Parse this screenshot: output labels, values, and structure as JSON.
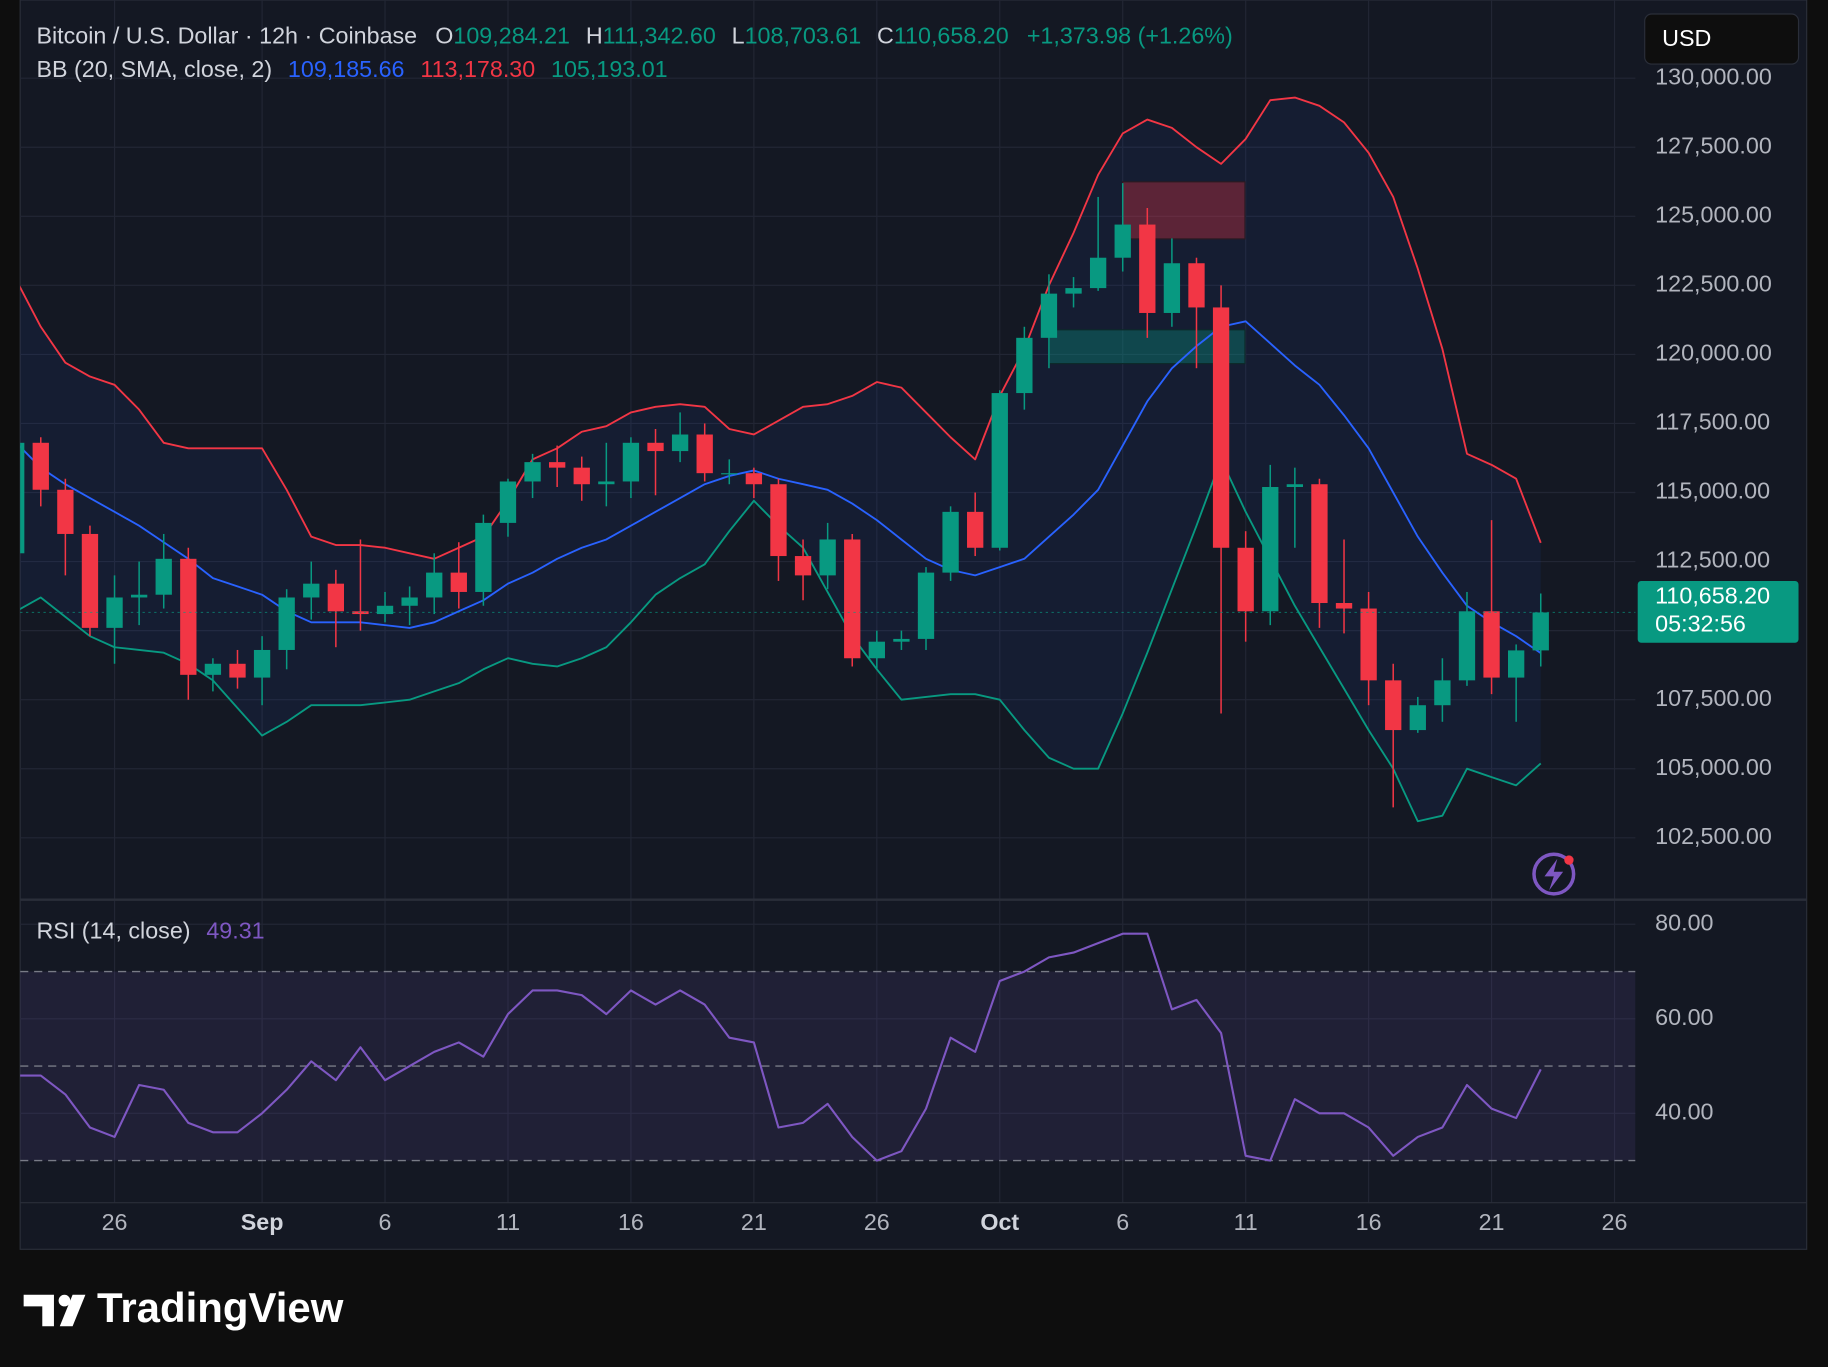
{
  "chart_data": {
    "type": "candlestick",
    "title": "Bitcoin / U.S. Dollar · 12h · Coinbase",
    "ohlc_legend": [
      {
        "key": "O",
        "text": "109,284.21"
      },
      {
        "key": "H",
        "text": "111,342.60"
      },
      {
        "key": "L",
        "text": "108,703.61"
      },
      {
        "key": "C",
        "text": "110,658.20"
      }
    ],
    "change": "+1,373.98 (+1.26%)",
    "currency": "USD",
    "price_tag": {
      "price": "110,658.20",
      "countdown": "05:32:56"
    },
    "up_color": "#089981",
    "down_color": "#f23645",
    "grid": true,
    "categories": [
      null,
      null,
      null,
      null,
      "26",
      null,
      null,
      null,
      null,
      null,
      "Sep",
      null,
      null,
      null,
      null,
      "6",
      null,
      null,
      null,
      null,
      "11",
      null,
      null,
      null,
      null,
      "16",
      null,
      null,
      null,
      null,
      "21",
      null,
      null,
      null,
      null,
      "26",
      null,
      null,
      null,
      null,
      "Oct",
      null,
      null,
      null,
      null,
      "6",
      null,
      null,
      null,
      null,
      "11",
      null,
      null,
      null,
      null,
      "16",
      null,
      null,
      null,
      null,
      "21",
      null,
      null,
      null,
      null,
      "26"
    ],
    "open": [
      112800,
      116800,
      115100,
      113500,
      110100,
      111200,
      111300,
      112600,
      108400,
      108800,
      108300,
      109300,
      111200,
      111700,
      110700,
      110600,
      110900,
      111200,
      112100,
      111400,
      113900,
      115400,
      116100,
      115900,
      115300,
      115400,
      116800,
      116500,
      117100,
      115700,
      115700,
      115300,
      112700,
      112000,
      113300,
      109000,
      109600,
      109700,
      112100,
      114300,
      113000,
      118600,
      120600,
      122200,
      122400,
      123500,
      124700,
      121500,
      123300,
      121700,
      113000,
      110700,
      115200,
      115300,
      111000,
      110800,
      108200,
      106400,
      107300,
      108200,
      110700,
      108300,
      109284.21,
      null,
      null,
      null
    ],
    "high": [
      117200,
      117000,
      115500,
      113800,
      112000,
      112500,
      113500,
      113000,
      109000,
      109300,
      109800,
      111500,
      112500,
      112200,
      113300,
      111400,
      111600,
      112800,
      113200,
      114200,
      115500,
      116400,
      116700,
      116300,
      116800,
      117000,
      117300,
      117900,
      117500,
      116200,
      115900,
      115500,
      113300,
      113900,
      113500,
      110000,
      110000,
      112300,
      114500,
      115000,
      118700,
      121000,
      122900,
      122800,
      125700,
      126200,
      125300,
      124200,
      123500,
      122500,
      113600,
      116000,
      115900,
      115500,
      113300,
      111400,
      108800,
      107600,
      109000,
      111400,
      114000,
      109500,
      111342.6,
      null,
      null,
      null
    ],
    "low": [
      112000,
      114500,
      112000,
      109800,
      108800,
      110200,
      110800,
      107500,
      107800,
      107900,
      107300,
      108600,
      110400,
      109400,
      110000,
      110300,
      110200,
      110600,
      110800,
      110900,
      113400,
      114800,
      115200,
      114700,
      114500,
      114800,
      114900,
      116100,
      115400,
      115300,
      114800,
      111800,
      111100,
      111500,
      108700,
      108600,
      109300,
      109300,
      111800,
      112700,
      112900,
      118000,
      119500,
      121700,
      122300,
      123000,
      120600,
      121000,
      119500,
      107000,
      109600,
      110200,
      113000,
      110100,
      109900,
      107300,
      103600,
      106300,
      106700,
      108000,
      107700,
      106700,
      108703.61,
      null,
      null,
      null
    ],
    "close": [
      116800,
      115100,
      113500,
      110100,
      111200,
      111300,
      112600,
      108400,
      108800,
      108300,
      109300,
      111200,
      111700,
      110700,
      110600,
      110900,
      111200,
      112100,
      111400,
      113900,
      115400,
      116100,
      115900,
      115300,
      115400,
      116800,
      116500,
      117100,
      115700,
      115700,
      115300,
      112700,
      112000,
      113300,
      109000,
      109600,
      109700,
      112100,
      114300,
      113000,
      118600,
      120600,
      122200,
      122400,
      123500,
      124700,
      121500,
      123300,
      121700,
      113000,
      110700,
      115200,
      115300,
      111000,
      110800,
      108200,
      106400,
      107300,
      108200,
      110700,
      108300,
      109284.21,
      110658.2,
      null,
      null,
      null
    ],
    "ylim": [
      100260,
      132830
    ],
    "yticks": [
      {
        "value": 102500,
        "label": "102,500.00"
      },
      {
        "value": 105000,
        "label": "105,000.00"
      },
      {
        "value": 107500,
        "label": "107,500.00"
      },
      {
        "value": 110000,
        "label": "110,000.00"
      },
      {
        "value": 112500,
        "label": "112,500.00"
      },
      {
        "value": 115000,
        "label": "115,000.00"
      },
      {
        "value": 117500,
        "label": "117,500.00"
      },
      {
        "value": 120000,
        "label": "120,000.00"
      },
      {
        "value": 122500,
        "label": "122,500.00"
      },
      {
        "value": 125000,
        "label": "125,000.00"
      },
      {
        "value": 127500,
        "label": "127,500.00"
      },
      {
        "value": 130000,
        "label": "130,000.00"
      }
    ],
    "bollinger": {
      "label": "BB (20, SMA, close, 2)",
      "fill": "rgba(41,98,255,0.07)",
      "basis": {
        "text": "109,185.66",
        "color": "#2962ff",
        "values": [
          116800,
          115900,
          115300,
          114800,
          114300,
          113800,
          113200,
          112600,
          111900,
          111600,
          111300,
          110700,
          110300,
          110300,
          110300,
          110200,
          110100,
          110300,
          110700,
          111100,
          111700,
          112100,
          112600,
          113000,
          113300,
          113800,
          114300,
          114800,
          115300,
          115600,
          115800,
          115500,
          115300,
          115100,
          114600,
          114000,
          113300,
          112600,
          112200,
          112000,
          112300,
          112600,
          113400,
          114200,
          115100,
          116700,
          118300,
          119500,
          120300,
          121000,
          121200,
          120400,
          119600,
          118900,
          117800,
          116600,
          115000,
          113400,
          112100,
          110900,
          110300,
          109800,
          109185.66,
          null,
          null,
          null
        ]
      },
      "upper": {
        "text": "113,178.30",
        "color": "#f23645",
        "values": [
          122700,
          121000,
          119700,
          119200,
          118900,
          118000,
          116800,
          116600,
          116600,
          116600,
          116600,
          115100,
          113400,
          113100,
          113100,
          113000,
          112800,
          112600,
          113000,
          113400,
          114700,
          116200,
          116600,
          117200,
          117400,
          117900,
          118100,
          118200,
          118100,
          117300,
          117100,
          117600,
          118100,
          118200,
          118500,
          119000,
          118800,
          117900,
          117000,
          116200,
          118500,
          120200,
          122500,
          124400,
          126500,
          128000,
          128500,
          128200,
          127500,
          126900,
          127800,
          129200,
          129300,
          129000,
          128400,
          127300,
          125700,
          123100,
          120200,
          116400,
          116000,
          115500,
          113178.3,
          null,
          null,
          null
        ]
      },
      "lower": {
        "text": "105,193.01",
        "color": "#089981",
        "values": [
          110700,
          111200,
          110500,
          109800,
          109400,
          109300,
          109200,
          108800,
          108200,
          107200,
          106200,
          106700,
          107300,
          107300,
          107300,
          107400,
          107500,
          107800,
          108100,
          108600,
          109000,
          108800,
          108700,
          109000,
          109400,
          110300,
          111300,
          111900,
          112400,
          113600,
          114700,
          113800,
          113000,
          111400,
          109800,
          108600,
          107500,
          107600,
          107700,
          107700,
          107500,
          106400,
          105400,
          105000,
          105000,
          107000,
          109200,
          111500,
          113800,
          116200,
          114300,
          112600,
          110900,
          109400,
          107900,
          106400,
          105000,
          103100,
          103300,
          105000,
          104700,
          104400,
          105193.01,
          null,
          null,
          null
        ]
      }
    },
    "rsi": {
      "label": "RSI (14, close)",
      "text": "49.31",
      "color": "#7e57c2",
      "values": [
        48,
        48,
        44,
        37,
        35,
        46,
        45,
        38,
        36,
        36,
        40,
        45,
        51,
        47,
        54,
        47,
        50,
        53,
        55,
        52,
        61,
        66,
        66,
        65,
        61,
        66,
        63,
        66,
        63,
        56,
        55,
        37,
        38,
        42,
        35,
        30,
        32,
        41,
        56,
        53,
        68,
        70,
        73,
        74,
        76,
        78,
        78,
        62,
        64,
        57,
        31,
        30,
        43,
        40,
        40,
        37,
        31,
        35,
        37,
        46,
        41,
        39,
        49.31,
        null,
        null,
        null
      ],
      "ylim": [
        21.1,
        85.2
      ],
      "yticks": [
        {
          "value": 40,
          "label": "40.00"
        },
        {
          "value": 60,
          "label": "60.00"
        },
        {
          "value": 80,
          "label": "80.00"
        }
      ],
      "levels": [
        30,
        50,
        70
      ]
    },
    "brand": "TradingView"
  }
}
